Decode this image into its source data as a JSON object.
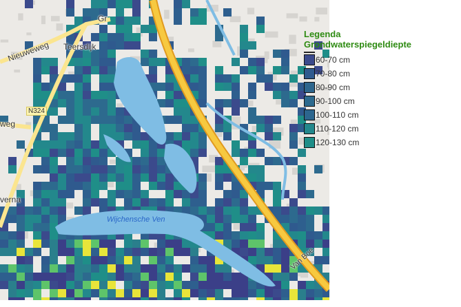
{
  "map": {
    "labels": {
      "nieuweweg": "Nieuweweg",
      "teersdijk": "Teersdijk",
      "road_shield": "N324",
      "weg": "weg",
      "verna": "verna",
      "gr": "Gr",
      "lake": "Wijchensche Ven",
      "van_bo": "Van Boe"
    },
    "colors": {
      "water": "#7fbde4",
      "highway": "#f7c940",
      "highway_edge": "#e19a1f",
      "road": "#fbe58f",
      "base": "#eceae6"
    }
  },
  "legend": {
    "title": "Legenda",
    "subtitle": "Grondwaterspiegeldiepte",
    "items": [
      {
        "label": "60-70 cm",
        "color": "#3b4a8c"
      },
      {
        "label": "70-80 cm",
        "color": "#2f5a8e"
      },
      {
        "label": "80-90 cm",
        "color": "#2e668d"
      },
      {
        "label": "90-100 cm",
        "color": "#2d6a8e"
      },
      {
        "label": "100-110 cm",
        "color": "#2c668e"
      },
      {
        "label": "110-120 cm",
        "color": "#23888c"
      },
      {
        "label": "120-130 cm",
        "color": "#1f8e88"
      }
    ]
  }
}
